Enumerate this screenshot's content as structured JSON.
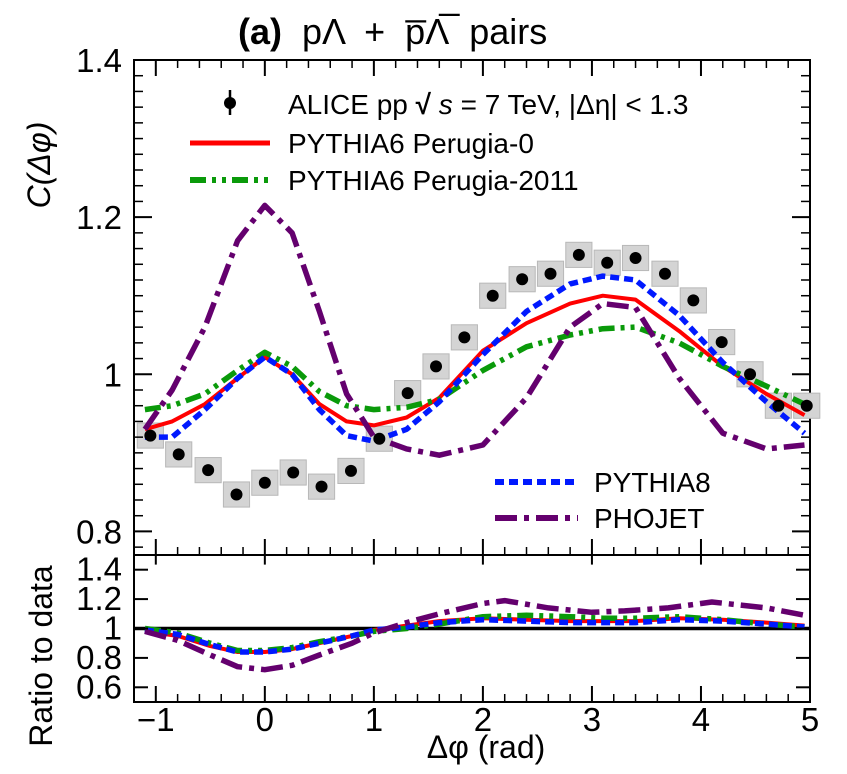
{
  "chart_data": {
    "type": "line",
    "title": "(a) pΛ + p̅Λ̅ pairs",
    "title_parts": {
      "panel": "(a)",
      "pair1": "pΛ",
      "plus": "+",
      "pair2": "p̅Λ̅",
      "suffix": "pairs"
    },
    "xlabel": "Δφ (rad)",
    "ylabel": "C(Δφ)",
    "xlim": [
      -1.2,
      5.0
    ],
    "xticks": [
      -1,
      0,
      1,
      2,
      3,
      4,
      5
    ],
    "xtick_labels": [
      "−1",
      "0",
      "1",
      "2",
      "3",
      "4",
      "5"
    ],
    "top_panel": {
      "ylim": [
        0.77,
        1.4
      ],
      "yticks": [
        0.8,
        1.0,
        1.2,
        1.4
      ],
      "ytick_labels": [
        "0.8",
        "1",
        "1.2",
        "1.4"
      ],
      "data": {
        "name": "ALICE pp √s = 7 TeV, |Δη| < 1.3",
        "x": [
          -1.05,
          -0.79,
          -0.52,
          -0.26,
          0.0,
          0.26,
          0.52,
          0.79,
          1.05,
          1.31,
          1.57,
          1.83,
          2.09,
          2.36,
          2.62,
          2.88,
          3.14,
          3.4,
          3.67,
          3.93,
          4.19,
          4.45,
          4.71,
          4.97
        ],
        "y": [
          0.922,
          0.898,
          0.878,
          0.847,
          0.862,
          0.875,
          0.857,
          0.877,
          0.918,
          0.976,
          1.01,
          1.047,
          1.1,
          1.121,
          1.128,
          1.152,
          1.142,
          1.148,
          1.128,
          1.094,
          1.041,
          1.0,
          0.96,
          0.96
        ]
      },
      "series": [
        {
          "name": "PYTHIA6 Perugia-0",
          "color": "#ff0000",
          "style": "solid",
          "x": [
            -1.1,
            -0.85,
            -0.55,
            -0.25,
            0.0,
            0.25,
            0.5,
            0.75,
            1.0,
            1.3,
            1.6,
            2.0,
            2.4,
            2.8,
            3.1,
            3.4,
            3.8,
            4.2,
            4.6,
            4.95
          ],
          "y": [
            0.93,
            0.94,
            0.962,
            0.995,
            1.022,
            1.0,
            0.962,
            0.94,
            0.935,
            0.945,
            0.97,
            1.03,
            1.065,
            1.09,
            1.1,
            1.095,
            1.055,
            1.01,
            0.975,
            0.948
          ]
        },
        {
          "name": "PYTHIA6 Perugia-2011",
          "color": "#0a9a0a",
          "style": "dash-dot-dot",
          "x": [
            -1.1,
            -0.85,
            -0.55,
            -0.25,
            0.0,
            0.25,
            0.5,
            0.75,
            1.0,
            1.3,
            1.6,
            2.0,
            2.4,
            2.8,
            3.1,
            3.4,
            3.8,
            4.2,
            4.6,
            4.95
          ],
          "y": [
            0.955,
            0.96,
            0.975,
            1.005,
            1.028,
            1.01,
            0.978,
            0.96,
            0.955,
            0.958,
            0.968,
            1.005,
            1.035,
            1.05,
            1.058,
            1.06,
            1.04,
            1.01,
            0.985,
            0.962
          ]
        },
        {
          "name": "PYTHIA8",
          "color": "#0019ff",
          "style": "dashed",
          "x": [
            -1.1,
            -0.85,
            -0.55,
            -0.25,
            0.0,
            0.25,
            0.5,
            0.75,
            1.0,
            1.3,
            1.6,
            2.0,
            2.4,
            2.8,
            3.1,
            3.4,
            3.8,
            4.2,
            4.6,
            4.95
          ],
          "y": [
            0.92,
            0.92,
            0.955,
            0.995,
            1.022,
            1.0,
            0.955,
            0.922,
            0.915,
            0.93,
            0.965,
            1.025,
            1.08,
            1.115,
            1.125,
            1.12,
            1.075,
            1.015,
            0.965,
            0.925
          ]
        },
        {
          "name": "PHOJET",
          "color": "#64006e",
          "style": "dash-dot",
          "x": [
            -1.1,
            -0.85,
            -0.55,
            -0.25,
            0.0,
            0.25,
            0.5,
            0.75,
            1.0,
            1.3,
            1.6,
            2.0,
            2.4,
            2.8,
            3.1,
            3.4,
            3.8,
            4.2,
            4.6,
            4.95
          ],
          "y": [
            0.93,
            0.98,
            1.06,
            1.17,
            1.215,
            1.18,
            1.08,
            0.975,
            0.92,
            0.905,
            0.897,
            0.91,
            0.97,
            1.06,
            1.09,
            1.085,
            0.995,
            0.925,
            0.905,
            0.91
          ]
        }
      ],
      "legend": {
        "top_left": [
          "ALICE pp √s = 7 TeV, |Δη| < 1.3",
          "PYTHIA6 Perugia-0",
          "PYTHIA6 Perugia-2011"
        ],
        "bottom_right": [
          "PYTHIA8",
          "PHOJET"
        ],
        "alice_parts": {
          "prefix": "ALICE pp ",
          "sqrt": "√",
          "s": "s",
          "energy": " = 7 TeV, |Δη| < 1.3"
        }
      }
    },
    "ratio_panel": {
      "ylabel": "Ratio to data",
      "ylim": [
        0.5,
        1.5
      ],
      "yticks": [
        0.6,
        0.8,
        1.0,
        1.2,
        1.4
      ],
      "ytick_labels": [
        "0.6",
        "0.8",
        "1",
        "1.2",
        "1.4"
      ],
      "reference": 1.0,
      "series": [
        {
          "name": "PYTHIA6 Perugia-0",
          "color": "#ff0000",
          "style": "solid",
          "x": [
            -1.1,
            -0.8,
            -0.5,
            -0.25,
            0.0,
            0.25,
            0.5,
            0.8,
            1.0,
            1.3,
            1.6,
            2.0,
            2.4,
            2.8,
            3.1,
            3.4,
            3.8,
            4.2,
            4.6,
            4.95
          ],
          "y": [
            0.98,
            0.95,
            0.88,
            0.84,
            0.84,
            0.86,
            0.9,
            0.95,
            0.99,
            1.02,
            1.05,
            1.07,
            1.06,
            1.05,
            1.05,
            1.05,
            1.07,
            1.06,
            1.04,
            1.02
          ]
        },
        {
          "name": "PYTHIA6 Perugia-2011",
          "color": "#0a9a0a",
          "style": "dash-dot-dot",
          "x": [
            -1.1,
            -0.8,
            -0.5,
            -0.25,
            0.0,
            0.25,
            0.5,
            0.8,
            1.0,
            1.3,
            1.6,
            2.0,
            2.4,
            2.8,
            3.1,
            3.4,
            3.8,
            4.2,
            4.6,
            4.95
          ],
          "y": [
            1.0,
            0.97,
            0.9,
            0.85,
            0.85,
            0.87,
            0.91,
            0.95,
            0.98,
            1.0,
            1.03,
            1.08,
            1.09,
            1.08,
            1.07,
            1.07,
            1.08,
            1.06,
            1.03,
            1.01
          ]
        },
        {
          "name": "PYTHIA8",
          "color": "#0019ff",
          "style": "dashed",
          "x": [
            -1.1,
            -0.8,
            -0.5,
            -0.25,
            0.0,
            0.25,
            0.5,
            0.8,
            1.0,
            1.3,
            1.6,
            2.0,
            2.4,
            2.8,
            3.1,
            3.4,
            3.8,
            4.2,
            4.6,
            4.95
          ],
          "y": [
            0.99,
            0.96,
            0.89,
            0.84,
            0.84,
            0.86,
            0.9,
            0.95,
            0.99,
            1.01,
            1.04,
            1.06,
            1.05,
            1.04,
            1.04,
            1.04,
            1.06,
            1.05,
            1.03,
            1.01
          ]
        },
        {
          "name": "PHOJET",
          "color": "#64006e",
          "style": "dash-dot",
          "x": [
            -1.1,
            -0.8,
            -0.5,
            -0.25,
            0.0,
            0.25,
            0.5,
            0.8,
            1.0,
            1.3,
            1.6,
            2.0,
            2.2,
            2.6,
            3.0,
            3.3,
            3.7,
            4.1,
            4.6,
            4.95
          ],
          "y": [
            0.98,
            0.92,
            0.82,
            0.74,
            0.72,
            0.75,
            0.82,
            0.9,
            0.97,
            1.04,
            1.1,
            1.17,
            1.19,
            1.14,
            1.11,
            1.12,
            1.14,
            1.18,
            1.14,
            1.09
          ]
        }
      ]
    }
  }
}
